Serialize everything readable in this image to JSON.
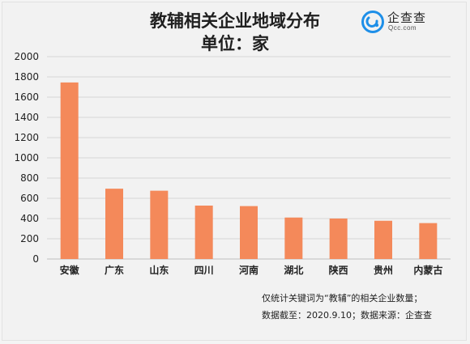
{
  "chart_data": {
    "type": "bar",
    "title": "教辅相关企业地域分布",
    "subtitle": "单位：家",
    "xlabel": "",
    "ylabel": "",
    "categories": [
      "安徽",
      "广东",
      "山东",
      "四川",
      "河南",
      "湖北",
      "陕西",
      "贵州",
      "内蒙古"
    ],
    "values": [
      1745,
      695,
      675,
      528,
      523,
      410,
      400,
      378,
      355
    ],
    "ylim": [
      0,
      2000
    ],
    "yticks": [
      "0",
      "200",
      "400",
      "600",
      "800",
      "1000",
      "1200",
      "1400",
      "1600",
      "1800",
      "2000"
    ],
    "grid": true,
    "bar_color": "#f4895a"
  },
  "logo": {
    "name": "企查查",
    "sub": "Qcc.com",
    "icon": "qcc-logo-icon",
    "color": "#1e8fe8"
  },
  "notes": {
    "line1": "仅统计关键词为“教辅”的相关企业数量；",
    "line2": "数据截至：2020.9.10；数据来源：企查查"
  }
}
